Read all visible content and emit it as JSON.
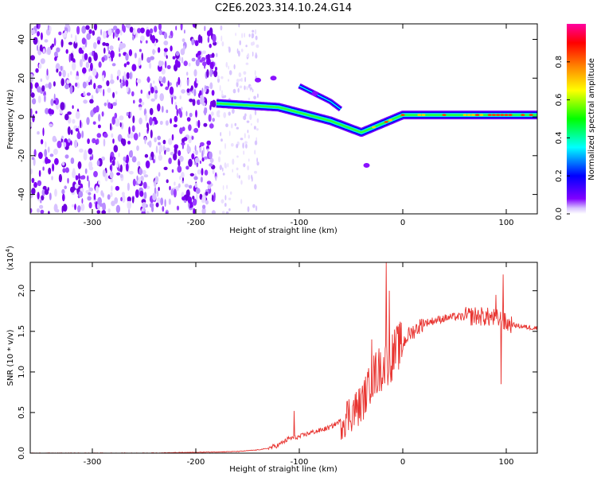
{
  "title": "C2E6.2023.314.10.24.G14",
  "chart_data": [
    {
      "type": "heatmap",
      "xlabel": "Height of straight line (km)",
      "ylabel": "Frequency (Hz)",
      "xlim": [
        -360,
        130
      ],
      "ylim": [
        -50,
        48
      ],
      "xticks": [
        -300,
        -200,
        -100,
        0,
        100
      ],
      "xtick_labels": [
        "-300",
        "-200",
        "-100",
        "0",
        "100"
      ],
      "yticks": [
        -40,
        -20,
        0,
        20,
        40
      ],
      "ytick_labels": [
        "-40",
        "-20",
        "0",
        "20",
        "40"
      ],
      "colorbar": {
        "label": "Normalized spectral amplitude",
        "range": [
          0.0,
          1.0
        ],
        "ticks": [
          0.0,
          0.2,
          0.4,
          0.6,
          0.8
        ],
        "tick_labels": [
          "0.0",
          "0.2",
          "0.4",
          "0.6",
          "0.8"
        ],
        "colors": [
          "#ffffff",
          "#8000ff",
          "#0000ff",
          "#00ffff",
          "#00ff00",
          "#ffff00",
          "#ff8000",
          "#ff0000",
          "#ff00a0"
        ]
      },
      "features": [
        {
          "name": "noise",
          "x": [
            -360,
            -180
          ],
          "freq": [
            -50,
            48
          ],
          "amplitude": 0.12
        },
        {
          "name": "faint-noise",
          "x": [
            -180,
            -140
          ],
          "freq": [
            -50,
            48
          ],
          "amplitude": 0.05
        },
        {
          "name": "ridge",
          "x": [
            -180,
            -120,
            -70,
            -40,
            0,
            130
          ],
          "freq": [
            7,
            5,
            -2,
            -8,
            1,
            1
          ],
          "amplitude": 0.85
        },
        {
          "name": "branch",
          "x": [
            -100,
            -85,
            -70,
            -60
          ],
          "freq": [
            16,
            12,
            8,
            4
          ],
          "amplitude": 0.4
        },
        {
          "name": "spots",
          "x": [
            -140,
            -125,
            -85,
            -35
          ],
          "freq": [
            19,
            20,
            12,
            -25
          ],
          "amplitude": 0.1
        }
      ]
    },
    {
      "type": "line",
      "xlabel": "Height of straight line (km)",
      "ylabel": "SNR (10 * v/v)",
      "scale_note": "(x10",
      "scale_exp": "4",
      "scale_close": ")",
      "xlim": [
        -360,
        130
      ],
      "ylim": [
        0,
        2.35
      ],
      "xticks": [
        -300,
        -200,
        -100,
        0,
        100
      ],
      "xtick_labels": [
        "-300",
        "-200",
        "-100",
        "0",
        "100"
      ],
      "yticks": [
        0.0,
        0.5,
        1.0,
        1.5,
        2.0
      ],
      "ytick_labels": [
        "0.0",
        "0.5",
        "1.0",
        "1.5",
        "2.0"
      ],
      "series": [
        {
          "name": "SNR",
          "color": "#e8332f",
          "x": [
            -360,
            -300,
            -250,
            -200,
            -160,
            -150,
            -140,
            -130,
            -120,
            -110,
            -100,
            -90,
            -80,
            -70,
            -60,
            -50,
            -40,
            -35,
            -30,
            -25,
            -20,
            -16,
            -12,
            -10,
            -5,
            0,
            5,
            10,
            20,
            30,
            40,
            50,
            60,
            70,
            80,
            90,
            95,
            100,
            110,
            120,
            130
          ],
          "values": [
            0.0,
            0.0,
            0.0,
            0.01,
            0.02,
            0.03,
            0.04,
            0.06,
            0.1,
            0.18,
            0.2,
            0.25,
            0.28,
            0.32,
            0.4,
            0.5,
            0.6,
            0.75,
            0.9,
            1.0,
            1.05,
            1.1,
            1.15,
            1.2,
            1.3,
            1.35,
            1.45,
            1.5,
            1.6,
            1.63,
            1.66,
            1.68,
            1.68,
            1.69,
            1.68,
            1.66,
            1.64,
            1.6,
            1.57,
            1.55,
            1.54
          ],
          "peaks": [
            {
              "x": -16,
              "value": 2.35
            },
            {
              "x": -13,
              "value": 2.0
            },
            {
              "x": -30,
              "value": 1.4
            },
            {
              "x": 97,
              "value": 2.2
            },
            {
              "x": 95,
              "value": 0.85
            },
            {
              "x": 90,
              "value": 1.95
            },
            {
              "x": -105,
              "value": 0.52
            }
          ]
        }
      ]
    }
  ]
}
